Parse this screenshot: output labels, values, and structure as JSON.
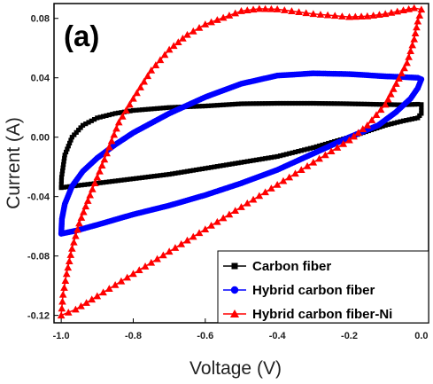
{
  "chart_data": {
    "type": "line",
    "panel_label": "(a)",
    "xlabel": "Voltage (V)",
    "ylabel": "Current (A)",
    "xlim": [
      -1.02,
      0.02
    ],
    "ylim": [
      -0.125,
      0.09
    ],
    "xticks": [
      -1.0,
      -0.8,
      -0.6,
      -0.4,
      -0.2,
      0.0
    ],
    "xtick_labels": [
      "-1.0",
      "-0.8",
      "-0.6",
      "-0.4",
      "-0.2",
      "0.0"
    ],
    "yticks": [
      -0.12,
      -0.08,
      -0.04,
      0.0,
      0.04,
      0.08
    ],
    "ytick_labels": [
      "-0.12",
      "-0.08",
      "-0.04",
      "0.00",
      "0.04",
      "0.08"
    ],
    "grid": false,
    "legend_position": "bottom-right",
    "series": [
      {
        "name": "Carbon fiber",
        "color": "#000000",
        "marker": "square",
        "points": [
          [
            -1.0,
            -0.034
          ],
          [
            -0.999,
            -0.027
          ],
          [
            -0.99,
            -0.012
          ],
          [
            -0.97,
            0.0
          ],
          [
            -0.94,
            0.008
          ],
          [
            -0.9,
            0.013
          ],
          [
            -0.85,
            0.016
          ],
          [
            -0.8,
            0.018
          ],
          [
            -0.7,
            0.02
          ],
          [
            -0.6,
            0.021
          ],
          [
            -0.5,
            0.0225
          ],
          [
            -0.4,
            0.0228
          ],
          [
            -0.3,
            0.0228
          ],
          [
            -0.2,
            0.0225
          ],
          [
            -0.1,
            0.022
          ],
          [
            -0.05,
            0.0218
          ],
          [
            -0.01,
            0.0222
          ],
          [
            0.0,
            0.022
          ],
          [
            0.0,
            0.016
          ],
          [
            -0.01,
            0.013
          ],
          [
            -0.05,
            0.011
          ],
          [
            -0.1,
            0.008
          ],
          [
            -0.2,
            0.0
          ],
          [
            -0.3,
            -0.007
          ],
          [
            -0.4,
            -0.013
          ],
          [
            -0.5,
            -0.017
          ],
          [
            -0.6,
            -0.021
          ],
          [
            -0.7,
            -0.025
          ],
          [
            -0.8,
            -0.028
          ],
          [
            -0.9,
            -0.031
          ],
          [
            -0.97,
            -0.033
          ],
          [
            -1.0,
            -0.034
          ]
        ]
      },
      {
        "name": "Hybrid carbon fiber",
        "color": "#0000ff",
        "marker": "circle",
        "points": [
          [
            -1.0,
            -0.065
          ],
          [
            -0.998,
            -0.055
          ],
          [
            -0.99,
            -0.045
          ],
          [
            -0.97,
            -0.033
          ],
          [
            -0.94,
            -0.023
          ],
          [
            -0.9,
            -0.014
          ],
          [
            -0.85,
            -0.005
          ],
          [
            -0.8,
            0.003
          ],
          [
            -0.7,
            0.016
          ],
          [
            -0.6,
            0.027
          ],
          [
            -0.5,
            0.036
          ],
          [
            -0.4,
            0.0415
          ],
          [
            -0.3,
            0.043
          ],
          [
            -0.2,
            0.0425
          ],
          [
            -0.1,
            0.041
          ],
          [
            -0.05,
            0.0405
          ],
          [
            -0.01,
            0.04
          ],
          [
            0.0,
            0.039
          ],
          [
            -0.01,
            0.033
          ],
          [
            -0.03,
            0.026
          ],
          [
            -0.07,
            0.017
          ],
          [
            -0.12,
            0.008
          ],
          [
            -0.2,
            0.0
          ],
          [
            -0.3,
            -0.011
          ],
          [
            -0.4,
            -0.022
          ],
          [
            -0.5,
            -0.031
          ],
          [
            -0.6,
            -0.039
          ],
          [
            -0.7,
            -0.046
          ],
          [
            -0.8,
            -0.052
          ],
          [
            -0.9,
            -0.059
          ],
          [
            -0.96,
            -0.063
          ],
          [
            -1.0,
            -0.065
          ]
        ]
      },
      {
        "name": "Hybrid carbon fiber-Ni",
        "color": "#ff0000",
        "marker": "triangle",
        "points": [
          [
            -1.0,
            -0.12
          ],
          [
            -0.995,
            -0.106
          ],
          [
            -0.985,
            -0.092
          ],
          [
            -0.97,
            -0.075
          ],
          [
            -0.95,
            -0.058
          ],
          [
            -0.92,
            -0.039
          ],
          [
            -0.88,
            -0.015
          ],
          [
            -0.84,
            0.01
          ],
          [
            -0.8,
            0.026
          ],
          [
            -0.75,
            0.045
          ],
          [
            -0.7,
            0.059
          ],
          [
            -0.65,
            0.069
          ],
          [
            -0.6,
            0.076
          ],
          [
            -0.5,
            0.085
          ],
          [
            -0.45,
            0.0865
          ],
          [
            -0.4,
            0.0862
          ],
          [
            -0.3,
            0.083
          ],
          [
            -0.2,
            0.081
          ],
          [
            -0.15,
            0.0815
          ],
          [
            -0.1,
            0.083
          ],
          [
            -0.05,
            0.0855
          ],
          [
            -0.02,
            0.087
          ],
          [
            0.0,
            0.086
          ],
          [
            -0.01,
            0.078
          ],
          [
            -0.02,
            0.066
          ],
          [
            -0.04,
            0.05
          ],
          [
            -0.07,
            0.036
          ],
          [
            -0.1,
            0.022
          ],
          [
            -0.15,
            0.008
          ],
          [
            -0.2,
            -0.002
          ],
          [
            -0.3,
            -0.017
          ],
          [
            -0.4,
            -0.032
          ],
          [
            -0.5,
            -0.047
          ],
          [
            -0.6,
            -0.062
          ],
          [
            -0.7,
            -0.077
          ],
          [
            -0.8,
            -0.092
          ],
          [
            -0.9,
            -0.107
          ],
          [
            -0.96,
            -0.116
          ],
          [
            -1.0,
            -0.12
          ]
        ]
      }
    ]
  }
}
